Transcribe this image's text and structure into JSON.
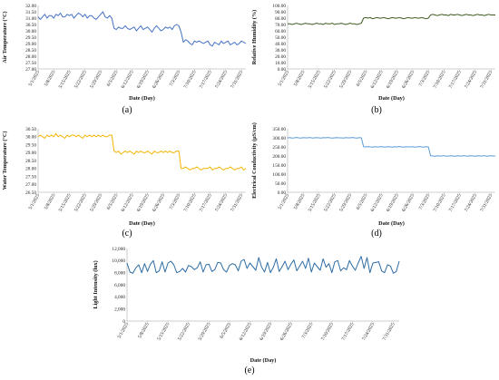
{
  "figure": {
    "captions": [
      "(a)",
      "(b)",
      "(c)",
      "(d)",
      "(e)"
    ]
  },
  "chart_data": [
    {
      "type": "line",
      "panel": "a",
      "ylabel": "Air Temperature (°C)",
      "xlabel": "Date (Day)",
      "ylim": [
        27.0,
        32.0
      ],
      "yticks": [
        "27.00",
        "27.50",
        "28.00",
        "28.50",
        "29.00",
        "29.50",
        "30.00",
        "30.50",
        "31.00",
        "31.50",
        "32.00"
      ],
      "xticks": [
        "5/1/2025",
        "5/8/2025",
        "5/15/2025",
        "5/22/2025",
        "5/29/2025",
        "6/5/2025",
        "6/12/2025",
        "6/19/2025",
        "6/26/2025",
        "7/3/2025",
        "7/10/2025",
        "7/17/2025",
        "7/24/2025",
        "7/31/2025"
      ],
      "x_start": "5/1/2025",
      "x_end": "8/2/2025",
      "line_color": "#4472c4",
      "grid": false,
      "series": [
        {
          "values": [
            31.1,
            30.9,
            31.1,
            31.3,
            31.0,
            31.2,
            31.2,
            31.0,
            31.3,
            31.2,
            31.4,
            31.1,
            31.1,
            31.3,
            31.2,
            31.3,
            31.0,
            31.2,
            31.4,
            31.3,
            31.1,
            31.3,
            31.0,
            31.2,
            31.2,
            31.0,
            30.9,
            31.1,
            31.3,
            31.5,
            31.1,
            31.0,
            31.2,
            31.0,
            30.2,
            30.1,
            30.3,
            30.2,
            30.2,
            30.4,
            30.2,
            30.1,
            30.2,
            30.3,
            30.0,
            30.2,
            30.4,
            30.1,
            30.2,
            30.3,
            30.1,
            29.9,
            30.2,
            30.4,
            30.2,
            30.0,
            30.1,
            30.3,
            30.2,
            30.3,
            30.1,
            30.4,
            30.5,
            30.4,
            29.9,
            29.1,
            29.3,
            29.2,
            29.0,
            28.9,
            29.2,
            29.1,
            29.2,
            29.1,
            29.0,
            29.1,
            29.2,
            28.9,
            28.8,
            29.1,
            29.0,
            28.9,
            29.2,
            29.0,
            29.1,
            29.2,
            28.9,
            29.0,
            29.1,
            28.9,
            29.0,
            29.2,
            29.1,
            29.0
          ]
        }
      ]
    },
    {
      "type": "line",
      "panel": "b",
      "ylabel": "Relative Humidity (%)",
      "xlabel": "Date (Day)",
      "ylim": [
        0.0,
        100.0
      ],
      "yticks": [
        "0.00",
        "10.00",
        "20.00",
        "30.00",
        "40.00",
        "50.00",
        "60.00",
        "70.00",
        "80.00",
        "90.00",
        "100.00"
      ],
      "xticks": [
        "5/1/2025",
        "5/8/2025",
        "5/15/2025",
        "5/22/2025",
        "5/29/2025",
        "6/5/2025",
        "6/12/2025",
        "6/19/2025",
        "6/26/2025",
        "7/3/2025",
        "7/10/2025",
        "7/17/2025",
        "7/24/2025",
        "7/31/2025"
      ],
      "x_start": "5/1/2025",
      "x_end": "8/2/2025",
      "line_color": "#3a5a1e",
      "grid": false,
      "series": [
        {
          "values": [
            71,
            71,
            70,
            71,
            72,
            71,
            70,
            71,
            72,
            71,
            71,
            70,
            71,
            72,
            71,
            71,
            70,
            72,
            71,
            71,
            72,
            70,
            71,
            71,
            72,
            71,
            70,
            71,
            72,
            71,
            71,
            70,
            71,
            72,
            80,
            81,
            80,
            81,
            79,
            80,
            81,
            80,
            80,
            81,
            80,
            79,
            80,
            81,
            80,
            80,
            81,
            80,
            79,
            80,
            81,
            80,
            80,
            81,
            80,
            80,
            81,
            80,
            79,
            80,
            85,
            86,
            85,
            84,
            85,
            86,
            85,
            85,
            84,
            86,
            85,
            85,
            86,
            85,
            84,
            85,
            86,
            85,
            85,
            84,
            85,
            86,
            85,
            85,
            84,
            85,
            86,
            85,
            85,
            85
          ]
        }
      ]
    },
    {
      "type": "line",
      "panel": "c",
      "ylabel": "Water Temperature (°C)",
      "xlabel": "Date (Day)",
      "ylim": [
        26.5,
        30.5
      ],
      "yticks": [
        "26.50",
        "27.00",
        "27.50",
        "28.00",
        "28.50",
        "29.00",
        "29.50",
        "30.00",
        "30.50"
      ],
      "xticks": [
        "5/1/2025",
        "5/8/2025",
        "5/15/2025",
        "5/22/2025",
        "5/29/2025",
        "6/5/2025",
        "6/12/2025",
        "6/19/2025",
        "6/26/2025",
        "7/3/2025",
        "7/10/2025",
        "7/17/2025",
        "7/24/2025",
        "7/31/2025"
      ],
      "x_start": "5/1/2025",
      "x_end": "8/2/2025",
      "line_color": "#f4b400",
      "grid": false,
      "series": [
        {
          "values": [
            30.0,
            30.1,
            30.0,
            29.9,
            30.1,
            30.0,
            30.1,
            30.0,
            30.2,
            30.0,
            30.1,
            30.0,
            29.9,
            30.1,
            30.0,
            30.1,
            30.1,
            30.0,
            30.1,
            30.0,
            29.9,
            30.1,
            30.0,
            30.1,
            30.0,
            30.1,
            30.0,
            30.1,
            30.0,
            30.1,
            30.0,
            30.0,
            30.1,
            30.1,
            29.1,
            29.0,
            29.1,
            28.9,
            29.0,
            29.1,
            29.0,
            29.1,
            29.0,
            28.9,
            29.1,
            29.0,
            29.1,
            29.0,
            29.0,
            29.1,
            29.0,
            28.9,
            29.1,
            29.0,
            29.0,
            29.1,
            29.0,
            29.1,
            29.0,
            29.1,
            29.0,
            29.0,
            29.1,
            29.1,
            28.0,
            28.0,
            28.1,
            28.0,
            27.9,
            28.0,
            28.0,
            28.1,
            28.0,
            27.9,
            28.0,
            28.0,
            28.0,
            28.1,
            27.9,
            28.0,
            28.0,
            28.1,
            28.0,
            27.9,
            28.0,
            28.0,
            28.1,
            28.0,
            27.9,
            28.0,
            28.0,
            28.1,
            27.9,
            28.0
          ]
        }
      ]
    },
    {
      "type": "line",
      "panel": "d",
      "ylabel": "Electrical Conductivity (µS/cm)",
      "xlabel": "Date (Day)",
      "ylim": [
        0.0,
        350.0
      ],
      "yticks": [
        "0.00",
        "50.00",
        "100.00",
        "150.00",
        "200.00",
        "250.00",
        "300.00",
        "350.00"
      ],
      "xticks": [
        "5/1/2025",
        "5/8/2025",
        "5/15/2025",
        "5/22/2025",
        "5/29/2025",
        "6/5/2025",
        "6/12/2025",
        "6/19/2025",
        "6/26/2025",
        "7/3/2025",
        "7/10/2025",
        "7/17/2025",
        "7/24/2025",
        "7/31/2025"
      ],
      "x_start": "5/1/2025",
      "x_end": "8/2/2025",
      "line_color": "#5b9bd5",
      "grid": false,
      "series": [
        {
          "values": [
            300,
            301,
            299,
            300,
            302,
            300,
            299,
            301,
            300,
            300,
            302,
            299,
            300,
            301,
            300,
            299,
            301,
            300,
            302,
            300,
            299,
            300,
            301,
            300,
            300,
            299,
            301,
            300,
            300,
            302,
            300,
            299,
            301,
            300,
            251,
            250,
            252,
            250,
            249,
            251,
            250,
            250,
            252,
            249,
            250,
            251,
            250,
            249,
            251,
            250,
            252,
            250,
            249,
            251,
            250,
            250,
            251,
            249,
            250,
            252,
            250,
            249,
            251,
            250,
            201,
            200,
            199,
            201,
            200,
            200,
            202,
            199,
            200,
            201,
            200,
            199,
            201,
            200,
            200,
            202,
            199,
            200,
            201,
            200,
            199,
            201,
            200,
            200,
            202,
            199,
            200,
            201,
            200,
            200
          ]
        }
      ]
    },
    {
      "type": "line",
      "panel": "e",
      "ylabel": "Light Intensity (lux)",
      "xlabel": "Date (Day)",
      "ylim": [
        0,
        12000
      ],
      "yticks": [
        "0",
        "2,000",
        "4,000",
        "6,000",
        "8,000",
        "10,000",
        "12,000"
      ],
      "xticks": [
        "5/1/2025",
        "5/8/2025",
        "5/15/2025",
        "5/22/2025",
        "5/29/2025",
        "6/5/2025",
        "6/12/2025",
        "6/19/2025",
        "6/26/2025",
        "7/3/2025",
        "7/10/2025",
        "7/17/2025",
        "7/24/2025",
        "7/31/2025"
      ],
      "x_start": "5/1/2025",
      "x_end": "8/2/2025",
      "line_color": "#2e6da4",
      "grid": false,
      "series": [
        {
          "values": [
            9600,
            8100,
            7900,
            8800,
            9300,
            8000,
            9500,
            8200,
            9400,
            10000,
            8000,
            8300,
            9800,
            8100,
            9600,
            9900,
            9300,
            8000,
            8200,
            8700,
            8100,
            9200,
            9000,
            8500,
            8800,
            9800,
            8100,
            9300,
            9400,
            8200,
            8500,
            9700,
            9600,
            8500,
            8100,
            9200,
            9500,
            9300,
            8300,
            9900,
            10200,
            8700,
            9600,
            9000,
            8400,
            10500,
            8900,
            8100,
            9700,
            8000,
            8900,
            10300,
            8200,
            9000,
            9900,
            8500,
            9400,
            10100,
            8300,
            9100,
            9900,
            8700,
            10400,
            8100,
            9600,
            9000,
            8400,
            10300,
            8900,
            9500,
            8000,
            9800,
            10000,
            8300,
            8800,
            8500,
            10000,
            9100,
            8400,
            9600,
            10700,
            8700,
            10500,
            8000,
            9600,
            9700,
            9800,
            8300,
            8000,
            9300,
            9100,
            7900,
            8200,
            9900
          ]
        }
      ]
    }
  ]
}
